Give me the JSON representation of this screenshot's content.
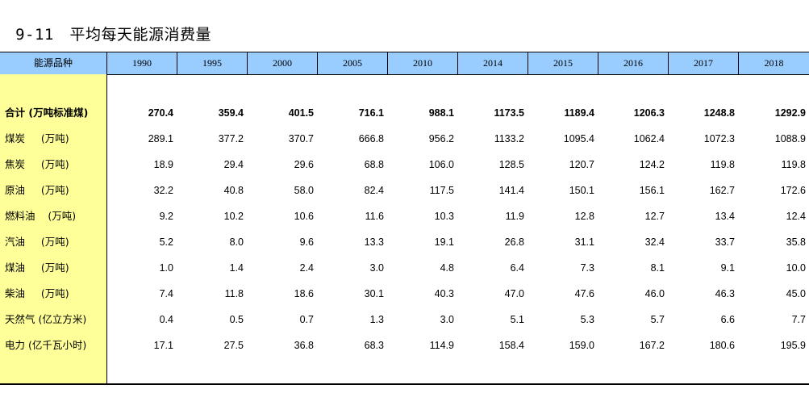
{
  "title": {
    "number": "9-11",
    "text": "平均每天能源消费量"
  },
  "header": {
    "label": "能源品种",
    "years": [
      "1990",
      "1995",
      "2000",
      "2005",
      "2010",
      "2014",
      "2015",
      "2016",
      "2017",
      "2018"
    ]
  },
  "rows": [
    {
      "label": "合计 (万吨标准煤)",
      "values": [
        "270.4",
        "359.4",
        "401.5",
        "716.1",
        "988.1",
        "1173.5",
        "1189.4",
        "1206.3",
        "1248.8",
        "1292.9"
      ]
    },
    {
      "label": "煤炭     (万吨)",
      "values": [
        "289.1",
        "377.2",
        "370.7",
        "666.8",
        "956.2",
        "1133.2",
        "1095.4",
        "1062.4",
        "1072.3",
        "1088.9"
      ]
    },
    {
      "label": "焦炭     (万吨)",
      "values": [
        "18.9",
        "29.4",
        "29.6",
        "68.8",
        "106.0",
        "128.5",
        "120.7",
        "124.2",
        "119.8",
        "119.8"
      ]
    },
    {
      "label": "原油     (万吨)",
      "values": [
        "32.2",
        "40.8",
        "58.0",
        "82.4",
        "117.5",
        "141.4",
        "150.1",
        "156.1",
        "162.7",
        "172.6"
      ]
    },
    {
      "label": "燃料油    (万吨)",
      "values": [
        "9.2",
        "10.2",
        "10.6",
        "11.6",
        "10.3",
        "11.9",
        "12.8",
        "12.7",
        "13.4",
        "12.4"
      ]
    },
    {
      "label": "汽油     (万吨)",
      "values": [
        "5.2",
        "8.0",
        "9.6",
        "13.3",
        "19.1",
        "26.8",
        "31.1",
        "32.4",
        "33.7",
        "35.8"
      ]
    },
    {
      "label": "煤油     (万吨)",
      "values": [
        "1.0",
        "1.4",
        "2.4",
        "3.0",
        "4.8",
        "6.4",
        "7.3",
        "8.1",
        "9.1",
        "10.0"
      ]
    },
    {
      "label": "柴油     (万吨)",
      "values": [
        "7.4",
        "11.8",
        "18.6",
        "30.1",
        "40.3",
        "47.0",
        "47.6",
        "46.0",
        "46.3",
        "45.0"
      ]
    },
    {
      "label": "天然气 (亿立方米)",
      "values": [
        "0.4",
        "0.5",
        "0.7",
        "1.3",
        "3.0",
        "5.1",
        "5.3",
        "5.7",
        "6.6",
        "7.7"
      ]
    },
    {
      "label": "电力 (亿千瓦小时)",
      "values": [
        "17.1",
        "27.5",
        "36.8",
        "68.3",
        "114.9",
        "158.4",
        "159.0",
        "167.2",
        "180.6",
        "195.9"
      ]
    }
  ]
}
